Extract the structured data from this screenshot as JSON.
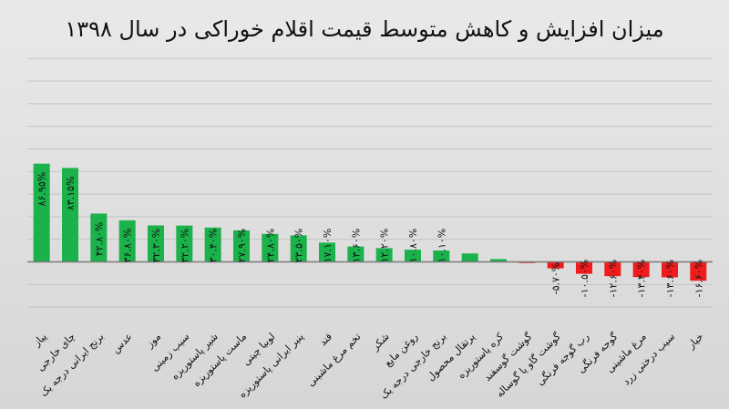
{
  "chart_data": {
    "type": "bar",
    "title": "میزان افزایش و کاهش متوسط قیمت اقلام خوراکی در سال ۱۳۹۸",
    "xlabel": "",
    "ylabel": "",
    "grid": true,
    "legend": "none",
    "ylim": [
      -60,
      185
    ],
    "categories": [
      "پیاز",
      "چای خارجی",
      "برنج ایرانی درجه یک",
      "عدس",
      "موز",
      "سیب زمینی",
      "شیر پاستوریزه",
      "ماست پاستوریزه",
      "لوبیا چیتی",
      "پنیر ایرانی پاستوریزه",
      "قند",
      "تخم مرغ ماشینی",
      "شکر",
      "روغن مایع",
      "برنج خارجی درجه یک",
      "پرتقال محصول",
      "کره پاستوریزه",
      "گوشت گوسفند",
      "گوشت گاو یا گوساله",
      "رب گوجه فرنگی",
      "گوجه فرنگی",
      "مرغ ماشینی",
      "سیب درختی زرد",
      "خیار"
    ],
    "values": [
      86.95,
      83.15,
      42.8,
      36.8,
      32.3,
      32.2,
      30.4,
      27.9,
      24.8,
      23.5,
      17.1,
      13.6,
      12.2,
      10.8,
      10.1,
      7.5,
      2.5,
      -1.0,
      -5.7,
      -10.5,
      -12.6,
      -13.4,
      -13.6,
      -16.6
    ],
    "data_labels": [
      "۸۶.۹۵%",
      "۸۳.۱۵%",
      "۴۲.۸۰%",
      "۳۶.۸۰%",
      "۳۲.۳۰%",
      "۳۲.۲۰%",
      "۳۰.۴۰%",
      "۲۷.۹۰%",
      "۲۴.۸۰%",
      "۲۳.۵۰%",
      "۱۷.۱۰%",
      "۱۳.۶۰%",
      "۱۲.۲۰%",
      "۱۰.۸۰%",
      "۱۰.۱۰%",
      "",
      "",
      "",
      "-۵.۷۰%",
      "-۱۰.۵۰%",
      "-۱۲.۶۰%",
      "-۱۳.۴۰%",
      "-۱۳.۶۰%",
      "-۱۶.۶۰%"
    ],
    "colors": {
      "positive": "#1bb14b",
      "negative": "#ee1c1c",
      "grid": "#c4c4c4",
      "axis": "#7a7a7a",
      "text": "#111111"
    }
  }
}
